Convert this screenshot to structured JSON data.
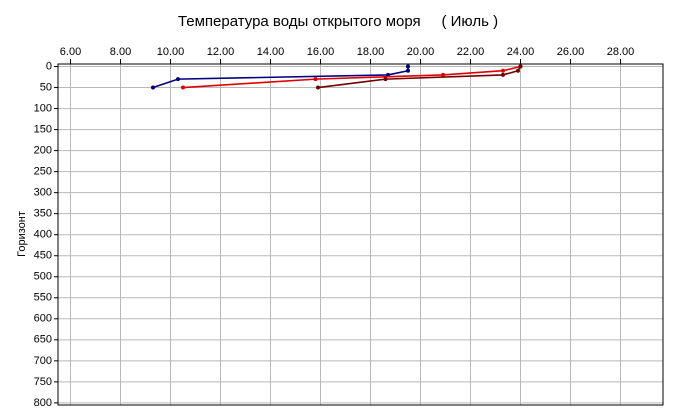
{
  "chart_data": {
    "type": "line",
    "title": "Температура воды открытого моря     ( Июль )",
    "y_label": "Горизонт",
    "series": [
      {
        "color": "#000080",
        "x": [
          19.5,
          19.5,
          18.7,
          10.3,
          9.3
        ],
        "values": [
          0,
          10,
          20,
          30,
          50
        ]
      },
      {
        "color": "#e00000",
        "x": [
          24.0,
          23.3,
          20.9,
          15.8,
          10.5
        ],
        "values": [
          0,
          10,
          20,
          30,
          50
        ]
      },
      {
        "color": "#700000",
        "x": [
          24.0,
          23.9,
          23.3,
          18.6,
          15.9
        ],
        "values": [
          0,
          10,
          20,
          30,
          50
        ]
      }
    ],
    "xlim": [
      5.5,
      29.7
    ],
    "xticks": [
      {
        "value": 6,
        "label": "6.00"
      },
      {
        "value": 8,
        "label": "8.00"
      },
      {
        "value": 10,
        "label": "10.00"
      },
      {
        "value": 12,
        "label": "12.00"
      },
      {
        "value": 14,
        "label": "14.00"
      },
      {
        "value": 16,
        "label": "16.00"
      },
      {
        "value": 18,
        "label": "18.00"
      },
      {
        "value": 20,
        "label": "20.00"
      },
      {
        "value": 22,
        "label": "22.00"
      },
      {
        "value": 24,
        "label": "24.00"
      },
      {
        "value": 26,
        "label": "26.00"
      },
      {
        "value": 28,
        "label": "28.00"
      }
    ],
    "ylim": [
      -6,
      805
    ],
    "yticks": [
      0,
      50,
      100,
      150,
      200,
      250,
      300,
      350,
      400,
      450,
      500,
      550,
      600,
      650,
      700,
      750,
      800
    ],
    "y_inverted": true,
    "x_axis_position": "top",
    "grid": true
  }
}
